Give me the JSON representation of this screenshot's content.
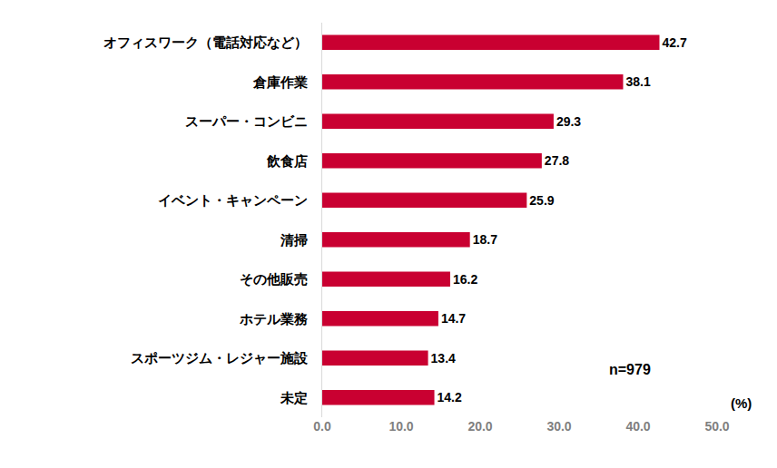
{
  "chart_data": {
    "type": "bar",
    "orientation": "horizontal",
    "categories": [
      "オフィスワーク（電話対応など）",
      "倉庫作業",
      "スーパー・コンビニ",
      "飲食店",
      "イベント・キャンペーン",
      "清掃",
      "その他販売",
      "ホテル業務",
      "スポーツジム・レジャー施設",
      "未定"
    ],
    "values": [
      42.7,
      38.1,
      29.3,
      27.8,
      25.9,
      18.7,
      16.2,
      14.7,
      13.4,
      14.2
    ],
    "color": "#c90031",
    "xlim": [
      0,
      50
    ],
    "xticks": [
      {
        "value": 0,
        "label": "0.0"
      },
      {
        "value": 10,
        "label": "10.0"
      },
      {
        "value": 20,
        "label": "20.0"
      },
      {
        "value": 30,
        "label": "30.0"
      },
      {
        "value": 40,
        "label": "40.0"
      },
      {
        "value": 50,
        "label": "50.0"
      }
    ],
    "xlabel": "(%)",
    "annotations": [
      "n=979"
    ],
    "data_labels": true,
    "grid": false
  }
}
